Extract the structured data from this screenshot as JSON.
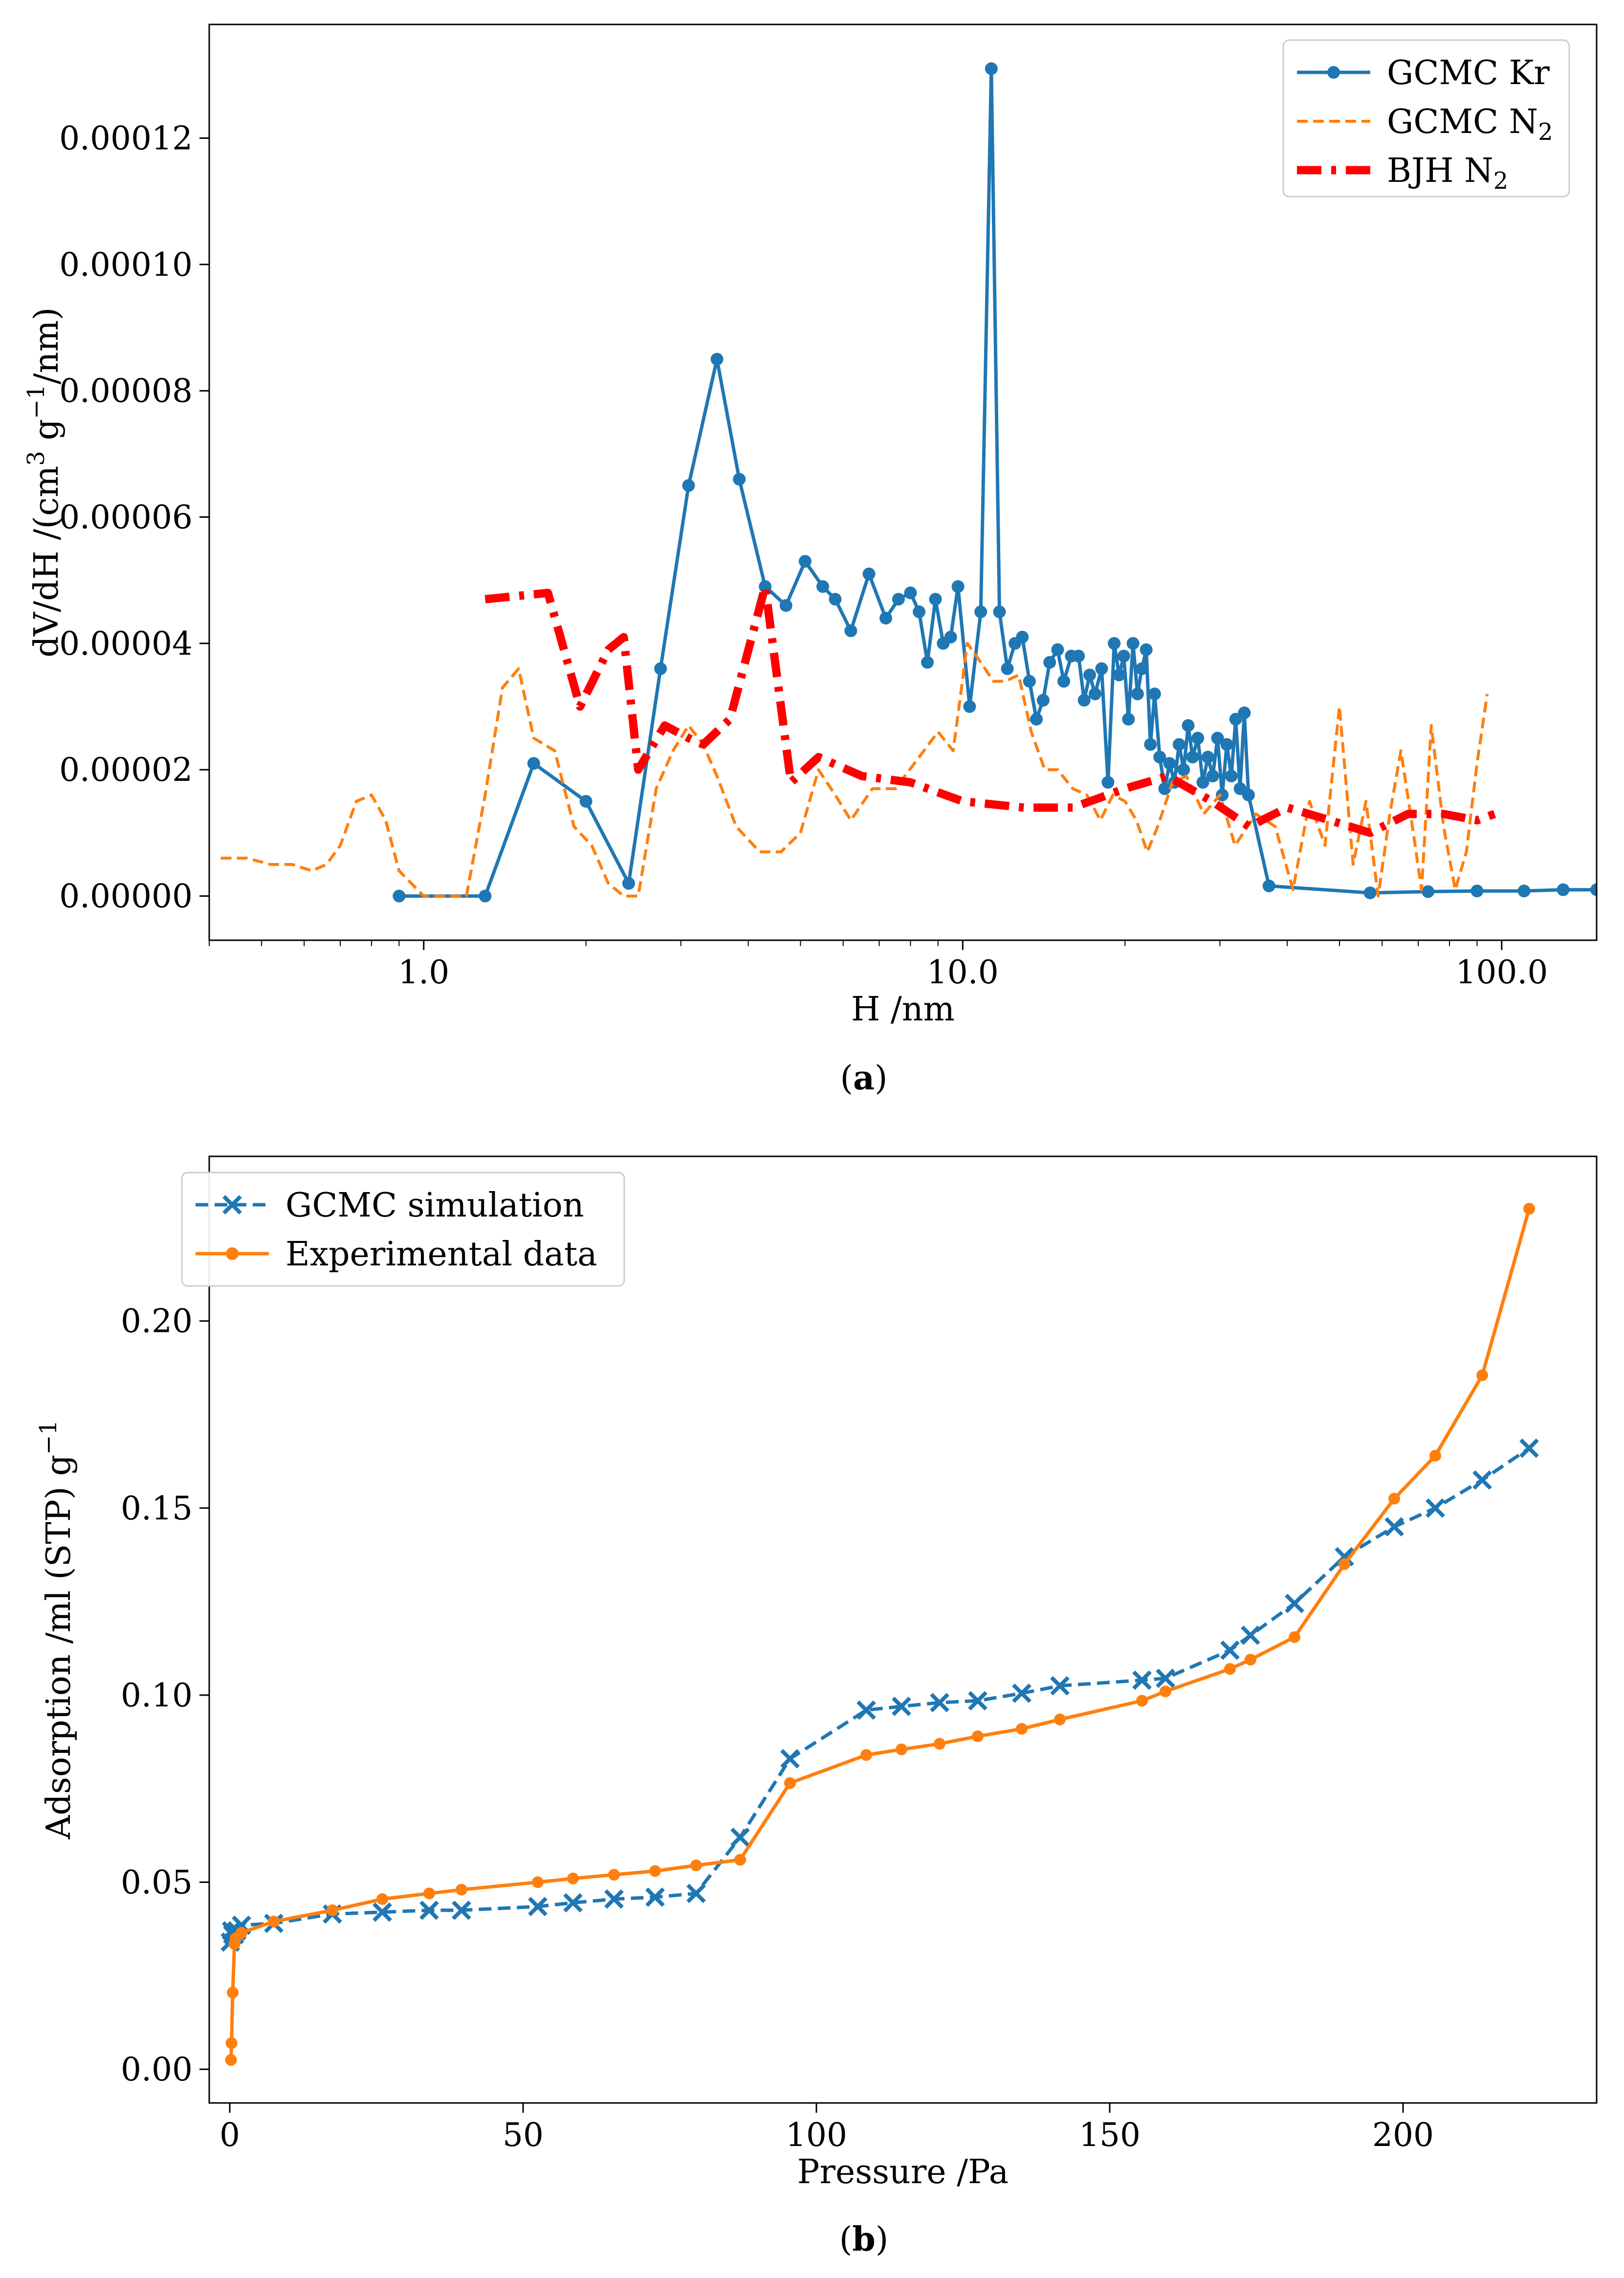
{
  "chart_data": [
    {
      "type": "line",
      "panel": "a",
      "caption": "a",
      "xscale": "log",
      "xlabel": "H /nm",
      "ylabel_parts": [
        "dV/dH /(cm",
        "3",
        " g",
        "−1",
        "/nm)"
      ],
      "xlim": [
        0.4,
        150
      ],
      "ylim": [
        -7e-06,
        0.000138
      ],
      "xticks": [
        1.0,
        10.0,
        100.0
      ],
      "xtick_labels": [
        "1.0",
        "10.0",
        "100.0"
      ],
      "yticks": [
        0,
        2e-05,
        4e-05,
        6e-05,
        8e-05,
        0.0001,
        0.00012
      ],
      "ytick_labels": [
        "0.00000",
        "0.00002",
        "0.00004",
        "0.00006",
        "0.00008",
        "0.00010",
        "0.00012"
      ],
      "legend_position": "top-right",
      "series": [
        {
          "name": "GCMC Kr",
          "legend_main": "GCMC Kr",
          "legend_sub": "",
          "color": "#1f77b4",
          "style": "solid-marker",
          "x": [
            0.9,
            1.3,
            1.6,
            2.0,
            2.4,
            2.75,
            3.1,
            3.5,
            3.85,
            4.3,
            4.7,
            5.1,
            5.5,
            5.8,
            6.2,
            6.7,
            7.2,
            7.6,
            8.0,
            8.3,
            8.6,
            8.9,
            9.2,
            9.5,
            9.8,
            10.3,
            10.8,
            11.3,
            11.7,
            12.1,
            12.5,
            12.9,
            13.3,
            13.7,
            14.1,
            14.5,
            15.0,
            15.4,
            15.9,
            16.4,
            16.8,
            17.2,
            17.6,
            18.1,
            18.6,
            19.1,
            19.5,
            19.9,
            20.3,
            20.7,
            21.1,
            21.5,
            21.9,
            22.3,
            22.7,
            23.2,
            23.7,
            24.2,
            24.7,
            25.2,
            25.7,
            26.2,
            26.7,
            27.3,
            27.9,
            28.5,
            29.1,
            29.7,
            30.3,
            30.9,
            31.5,
            32.1,
            32.7,
            33.3,
            33.9,
            37.0,
            57.0,
            73.0,
            90.0,
            110.0,
            130.0,
            150.0
          ],
          "y": [
            0.0,
            0.0,
            2.1e-05,
            1.5e-05,
            2e-06,
            3.6e-05,
            6.5e-05,
            8.5e-05,
            6.6e-05,
            4.9e-05,
            4.6e-05,
            5.3e-05,
            4.9e-05,
            4.7e-05,
            4.2e-05,
            5.1e-05,
            4.4e-05,
            4.7e-05,
            4.8e-05,
            4.5e-05,
            3.7e-05,
            4.7e-05,
            4e-05,
            4.1e-05,
            4.9e-05,
            3e-05,
            4.5e-05,
            0.000131,
            4.5e-05,
            3.6e-05,
            4e-05,
            4.1e-05,
            3.4e-05,
            2.8e-05,
            3.1e-05,
            3.7e-05,
            3.9e-05,
            3.4e-05,
            3.8e-05,
            3.8e-05,
            3.1e-05,
            3.5e-05,
            3.2e-05,
            3.6e-05,
            1.8e-05,
            4e-05,
            3.5e-05,
            3.8e-05,
            2.8e-05,
            4e-05,
            3.2e-05,
            3.6e-05,
            3.9e-05,
            2.4e-05,
            3.2e-05,
            2.2e-05,
            1.7e-05,
            2.1e-05,
            1.8e-05,
            2.4e-05,
            2e-05,
            2.7e-05,
            2.2e-05,
            2.5e-05,
            1.8e-05,
            2.2e-05,
            1.9e-05,
            2.5e-05,
            1.6e-05,
            2.4e-05,
            1.9e-05,
            2.8e-05,
            1.7e-05,
            2.9e-05,
            1.6e-05,
            1.6e-06,
            5e-07,
            7e-07,
            8e-07,
            8e-07,
            1e-06,
            1e-06
          ]
        },
        {
          "name": "GCMC N2",
          "legend_main": "GCMC N",
          "legend_sub": "2",
          "color": "#ff7f0e",
          "style": "dashed",
          "x": [
            0.42,
            0.47,
            0.52,
            0.57,
            0.62,
            0.66,
            0.7,
            0.75,
            0.8,
            0.85,
            0.9,
            1.0,
            1.2,
            1.3,
            1.4,
            1.5,
            1.6,
            1.75,
            1.9,
            2.05,
            2.2,
            2.35,
            2.5,
            2.7,
            2.9,
            3.1,
            3.3,
            3.5,
            3.8,
            4.2,
            4.6,
            5.0,
            5.4,
            5.8,
            6.2,
            6.8,
            7.5,
            8.3,
            9.0,
            9.6,
            10.2,
            10.8,
            11.4,
            12.0,
            12.7,
            13.4,
            14.2,
            15.0,
            16.0,
            17.0,
            18.0,
            19.0,
            20.0,
            21.0,
            22.0,
            23.0,
            24.5,
            26.0,
            28.0,
            30.0,
            32.0,
            35.0,
            38.0,
            41.0,
            44.0,
            47.0,
            50.0,
            53.0,
            56.0,
            59.0,
            62.0,
            65.0,
            68.0,
            71.0,
            74.0,
            78.0,
            82.0,
            86.0,
            90.0,
            94.0
          ],
          "y": [
            6e-06,
            6e-06,
            5e-06,
            5e-06,
            4e-06,
            5e-06,
            8e-06,
            1.5e-05,
            1.6e-05,
            1.2e-05,
            4e-06,
            0.0,
            0.0,
            1.6e-05,
            3.3e-05,
            3.6e-05,
            2.5e-05,
            2.3e-05,
            1.1e-05,
            8e-06,
            2e-06,
            0.0,
            0.0,
            1.7e-05,
            2.3e-05,
            2.7e-05,
            2.4e-05,
            1.9e-05,
            1.1e-05,
            7e-06,
            7e-06,
            1e-05,
            2e-05,
            1.6e-05,
            1.2e-05,
            1.7e-05,
            1.7e-05,
            2.2e-05,
            2.6e-05,
            2.3e-05,
            4e-05,
            3.7e-05,
            3.4e-05,
            3.4e-05,
            3.5e-05,
            2.6e-05,
            2e-05,
            2e-05,
            1.7e-05,
            1.6e-05,
            1.2e-05,
            1.6e-05,
            1.5e-05,
            1.2e-05,
            7e-06,
            1.1e-05,
            1.8e-05,
            1.9e-05,
            1.3e-05,
            1.6e-05,
            8e-06,
            1.3e-05,
            1.1e-05,
            1e-06,
            1.5e-05,
            8e-06,
            3e-05,
            5e-06,
            1.5e-05,
            0.0,
            1.3e-05,
            2.3e-05,
            1.2e-05,
            1e-06,
            2.7e-05,
            1.1e-05,
            1e-06,
            7e-06,
            2.1e-05,
            3.2e-05
          ]
        },
        {
          "name": "BJH N2",
          "legend_main": "BJH N",
          "legend_sub": "2",
          "color": "#ff0000",
          "style": "dashdot",
          "x": [
            1.3,
            1.7,
            1.95,
            2.2,
            2.35,
            2.5,
            2.8,
            3.1,
            3.3,
            3.7,
            4.3,
            4.8,
            5.4,
            6.5,
            8.0,
            10.0,
            13.0,
            16.0,
            20.0,
            24.0,
            29.0,
            34.0,
            40.0,
            48.0,
            57.0,
            67.0,
            78.0,
            90.0,
            97.0
          ],
          "y": [
            4.7e-05,
            4.8e-05,
            3e-05,
            3.9e-05,
            4.1e-05,
            2e-05,
            2.7e-05,
            2.5e-05,
            2.4e-05,
            2.8e-05,
            4.9e-05,
            1.8e-05,
            2.2e-05,
            1.9e-05,
            1.8e-05,
            1.5e-05,
            1.4e-05,
            1.4e-05,
            1.7e-05,
            1.9e-05,
            1.5e-05,
            1.1e-05,
            1.4e-05,
            1.2e-05,
            1e-05,
            1.3e-05,
            1.3e-05,
            1.2e-05,
            1.3e-05
          ]
        }
      ]
    },
    {
      "type": "line",
      "panel": "b",
      "caption": "b",
      "xscale": "linear",
      "xlabel": "Pressure /Pa",
      "ylabel_parts": [
        "Adsorption /ml (STP) g",
        "−1"
      ],
      "xlim": [
        -3.5,
        233
      ],
      "ylim": [
        -0.009,
        0.244
      ],
      "xticks": [
        0,
        50,
        100,
        150,
        200
      ],
      "xtick_labels": [
        "0",
        "50",
        "100",
        "150",
        "200"
      ],
      "yticks": [
        0,
        0.05,
        0.1,
        0.15,
        0.2
      ],
      "ytick_labels": [
        "0.00",
        "0.05",
        "0.10",
        "0.15",
        "0.20"
      ],
      "legend_position": "top-left",
      "series": [
        {
          "name": "GCMC simulation",
          "legend_main": "GCMC simulation",
          "legend_sub": "",
          "color": "#1f77b4",
          "style": "dashed-x",
          "x": [
            0.1,
            0.3,
            0.5,
            0.8,
            1.2,
            2.0,
            7.5,
            17.5,
            26.0,
            34.0,
            39.5,
            52.5,
            58.5,
            65.5,
            72.5,
            79.5,
            87.0,
            95.5,
            108.5,
            114.5,
            121.0,
            127.5,
            135.0,
            141.5,
            155.5,
            159.5,
            170.5,
            174.0,
            181.5,
            190.0,
            198.5,
            205.5,
            213.5,
            221.5
          ],
          "y": [
            0.034,
            0.037,
            0.036,
            0.036,
            0.037,
            0.0385,
            0.039,
            0.0415,
            0.042,
            0.0425,
            0.0425,
            0.0435,
            0.0445,
            0.0455,
            0.046,
            0.047,
            0.062,
            0.083,
            0.096,
            0.097,
            0.098,
            0.0985,
            0.1005,
            0.1025,
            0.104,
            0.1045,
            0.112,
            0.116,
            0.1245,
            0.137,
            0.145,
            0.15,
            0.1575,
            0.166
          ]
        },
        {
          "name": "Experimental data",
          "legend_main": "Experimental data",
          "legend_sub": "",
          "color": "#ff7f0e",
          "style": "solid-dot",
          "x": [
            0.2,
            0.3,
            0.5,
            0.8,
            1.0,
            2.0,
            7.5,
            17.5,
            26.0,
            34.0,
            39.5,
            52.5,
            58.5,
            65.5,
            72.5,
            79.5,
            87.0,
            95.5,
            108.5,
            114.5,
            121.0,
            127.5,
            135.0,
            141.5,
            155.5,
            159.5,
            170.5,
            174.0,
            181.5,
            190.0,
            198.5,
            205.5,
            213.5,
            221.5
          ],
          "y": [
            0.0025,
            0.007,
            0.0205,
            0.0335,
            0.035,
            0.0365,
            0.0395,
            0.0425,
            0.0455,
            0.047,
            0.048,
            0.05,
            0.051,
            0.052,
            0.053,
            0.0545,
            0.056,
            0.0765,
            0.084,
            0.0855,
            0.087,
            0.089,
            0.091,
            0.0935,
            0.0985,
            0.101,
            0.107,
            0.1095,
            0.1155,
            0.135,
            0.1525,
            0.164,
            0.1855,
            0.23
          ]
        }
      ]
    }
  ]
}
